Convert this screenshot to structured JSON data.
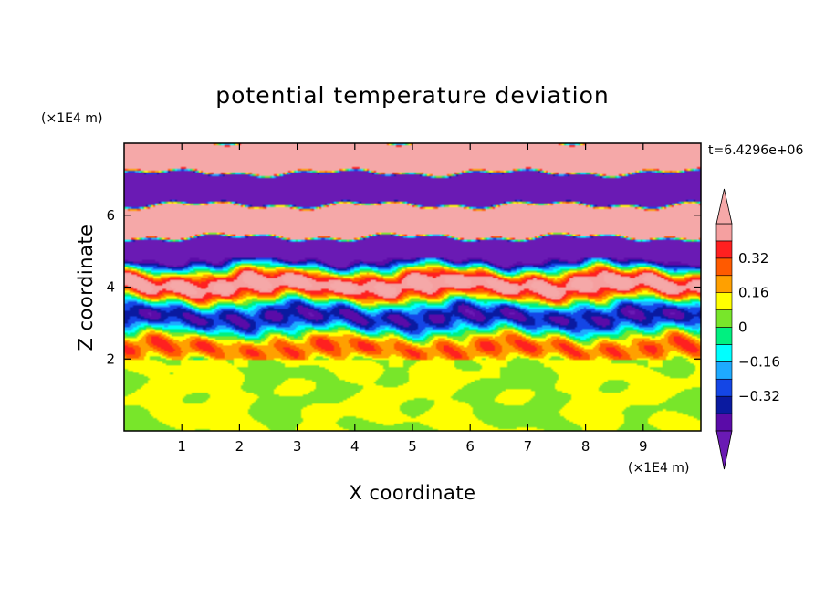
{
  "chart_data": {
    "type": "heatmap",
    "title": "potential temperature deviation",
    "xlabel": "X coordinate",
    "ylabel": "Z coordinate",
    "x_unit": "(×1E4 m)",
    "y_unit": "(×1E4 m)",
    "timestamp": "t=6.4296e+06",
    "xlim": [
      0,
      10
    ],
    "ylim": [
      0,
      8
    ],
    "x_ticks": [
      1,
      2,
      3,
      4,
      5,
      6,
      7,
      8,
      9
    ],
    "x_tick_labels": [
      "1",
      "2",
      "3",
      "4",
      "5",
      "6",
      "7",
      "8",
      "9"
    ],
    "y_ticks": [
      2,
      4,
      6
    ],
    "y_tick_labels": [
      "2",
      "4",
      "6"
    ],
    "colorbar": {
      "levels": [
        -0.48,
        -0.4,
        -0.32,
        -0.24,
        -0.16,
        -0.08,
        0,
        0.08,
        0.16,
        0.24,
        0.32,
        0.4,
        0.48
      ],
      "colors": [
        "#5a0ba8",
        "#0a1aa0",
        "#1446e6",
        "#1eaaff",
        "#00ffff",
        "#00f080",
        "#78e62a",
        "#ffff00",
        "#ffa000",
        "#ff5a00",
        "#ff2020",
        "#f5a0a0"
      ],
      "under_color": "#6a1ab4",
      "over_color": "#f5a8a8",
      "tick_values": [
        0.32,
        0.16,
        0,
        -0.16,
        -0.32
      ],
      "tick_labels": [
        "0.32",
        "0.16",
        "0",
        "−0.16",
        "−0.32"
      ]
    }
  }
}
